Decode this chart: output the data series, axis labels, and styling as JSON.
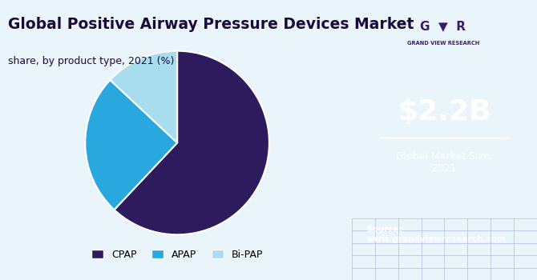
{
  "title": "Global Positive Airway Pressure Devices Market",
  "subtitle": "share, by product type, 2021 (%)",
  "slices": [
    62,
    25,
    13
  ],
  "labels": [
    "CPAP",
    "APAP",
    "Bi-PAP"
  ],
  "colors": [
    "#2d1b5e",
    "#29a8e0",
    "#a8ddf0"
  ],
  "startangle": 90,
  "background_color": "#eaf4fb",
  "sidebar_color": "#3b1a6e",
  "market_size": "$2.2B",
  "market_label": "Global Market Size,\n2021",
  "source_label": "Source:\nwww.grandviewresearch.com",
  "title_color": "#1a0a3c",
  "subtitle_color": "#1a0a3c",
  "bottom_grid_color": "#5a6abf"
}
